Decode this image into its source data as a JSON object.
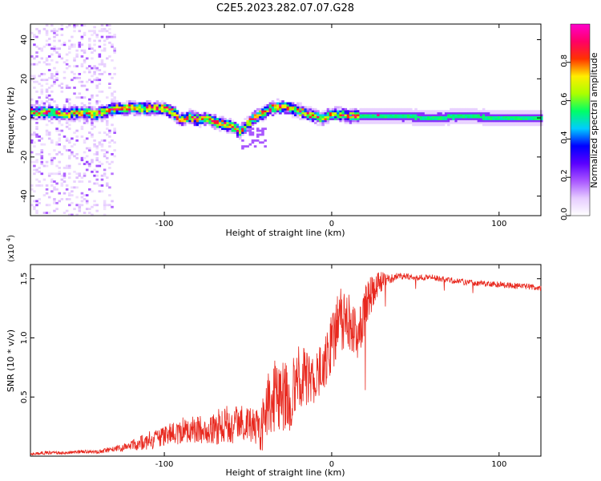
{
  "figure": {
    "title": "C2E5.2023.282.07.07.G28"
  },
  "chart_data": [
    {
      "type": "heatmap",
      "xlabel": "Height of straight line (km)",
      "ylabel": "Frequency (Hz)",
      "xlim": [
        -180,
        125
      ],
      "ylim": [
        -50,
        48
      ],
      "xticks": [
        -100,
        0,
        100
      ],
      "yticks": [
        -40,
        -20,
        0,
        20,
        40
      ],
      "grid": false,
      "ridge": {
        "x": [
          -180,
          -170,
          -160,
          -150,
          -140,
          -130,
          -120,
          -110,
          -100,
          -95,
          -90,
          -85,
          -80,
          -75,
          -70,
          -65,
          -60,
          -55,
          -50,
          -45,
          -40,
          -35,
          -30,
          -25,
          -20,
          -15,
          -10,
          -5,
          0,
          5,
          10,
          15,
          20,
          40,
          60,
          80,
          100,
          125
        ],
        "y": [
          3,
          3,
          2,
          3,
          2,
          5,
          5,
          5,
          5,
          3,
          -1,
          1,
          -1,
          0,
          -2,
          -3,
          -4,
          -7,
          -3,
          1,
          3,
          5,
          6,
          5,
          4,
          2,
          1,
          0,
          2,
          2,
          1,
          1,
          1,
          1,
          0,
          1,
          0,
          0
        ]
      },
      "colorbar": {
        "label": "Normalized spectral amplitude",
        "range": [
          0,
          1
        ],
        "ticks": [
          "0.0",
          "0.2",
          "0.4",
          "0.6",
          "0.8"
        ],
        "colors": [
          "#ffffff",
          "#e6ccff",
          "#a855ff",
          "#5a00ff",
          "#0000ff",
          "#00ccff",
          "#00ff66",
          "#aaff00",
          "#ffee00",
          "#ff3300",
          "#ff0066",
          "#ff00cc"
        ]
      }
    },
    {
      "type": "line",
      "xlabel": "Height of straight line (km)",
      "ylabel": "SNR (10 * v/v)",
      "y_multiplier": "(x10^4)",
      "xlim": [
        -180,
        125
      ],
      "ylim": [
        0,
        16200
      ],
      "xticks": [
        -100,
        0,
        100
      ],
      "yticks": [
        0.5,
        1.0,
        1.5
      ],
      "ytick_labels": [
        "0.5",
        "1.0",
        "1.5"
      ],
      "color": "#e8281e",
      "series": [
        {
          "x": [
            -180,
            -170,
            -160,
            -150,
            -140,
            -130,
            -125,
            -120,
            -115,
            -110,
            -105,
            -100,
            -95,
            -90,
            -85,
            -80,
            -75,
            -70,
            -65,
            -60,
            -55,
            -50,
            -45,
            -40,
            -38,
            -35,
            -30,
            -25,
            -20,
            -15,
            -10,
            -5,
            0,
            5,
            10,
            15,
            20,
            25,
            30,
            35,
            40,
            45,
            50,
            60,
            70,
            80,
            90,
            100,
            110,
            120,
            125
          ],
          "y": [
            200,
            300,
            250,
            400,
            350,
            600,
            700,
            900,
            1100,
            1300,
            1400,
            1700,
            1900,
            2200,
            2300,
            2300,
            2100,
            2300,
            2700,
            2600,
            2800,
            2900,
            2300,
            2700,
            4500,
            5000,
            5200,
            5000,
            6500,
            6700,
            6600,
            7500,
            9500,
            11500,
            11300,
            10000,
            12500,
            14000,
            14800,
            15000,
            15200,
            15200,
            15100,
            15100,
            14900,
            14700,
            14600,
            14500,
            14400,
            14300,
            14200
          ],
          "amplitude": [
            100,
            150,
            100,
            150,
            150,
            250,
            300,
            400,
            600,
            800,
            900,
            1000,
            900,
            1200,
            1100,
            1200,
            1100,
            1300,
            1700,
            1600,
            1700,
            1500,
            1700,
            2500,
            2500,
            3000,
            3200,
            3000,
            2800,
            2500,
            2300,
            2300,
            2500,
            2800,
            2500,
            2300,
            2000,
            1500,
            800,
            500,
            300,
            250,
            250,
            250,
            250,
            250,
            250,
            250,
            250,
            250,
            250
          ]
        }
      ]
    }
  ]
}
